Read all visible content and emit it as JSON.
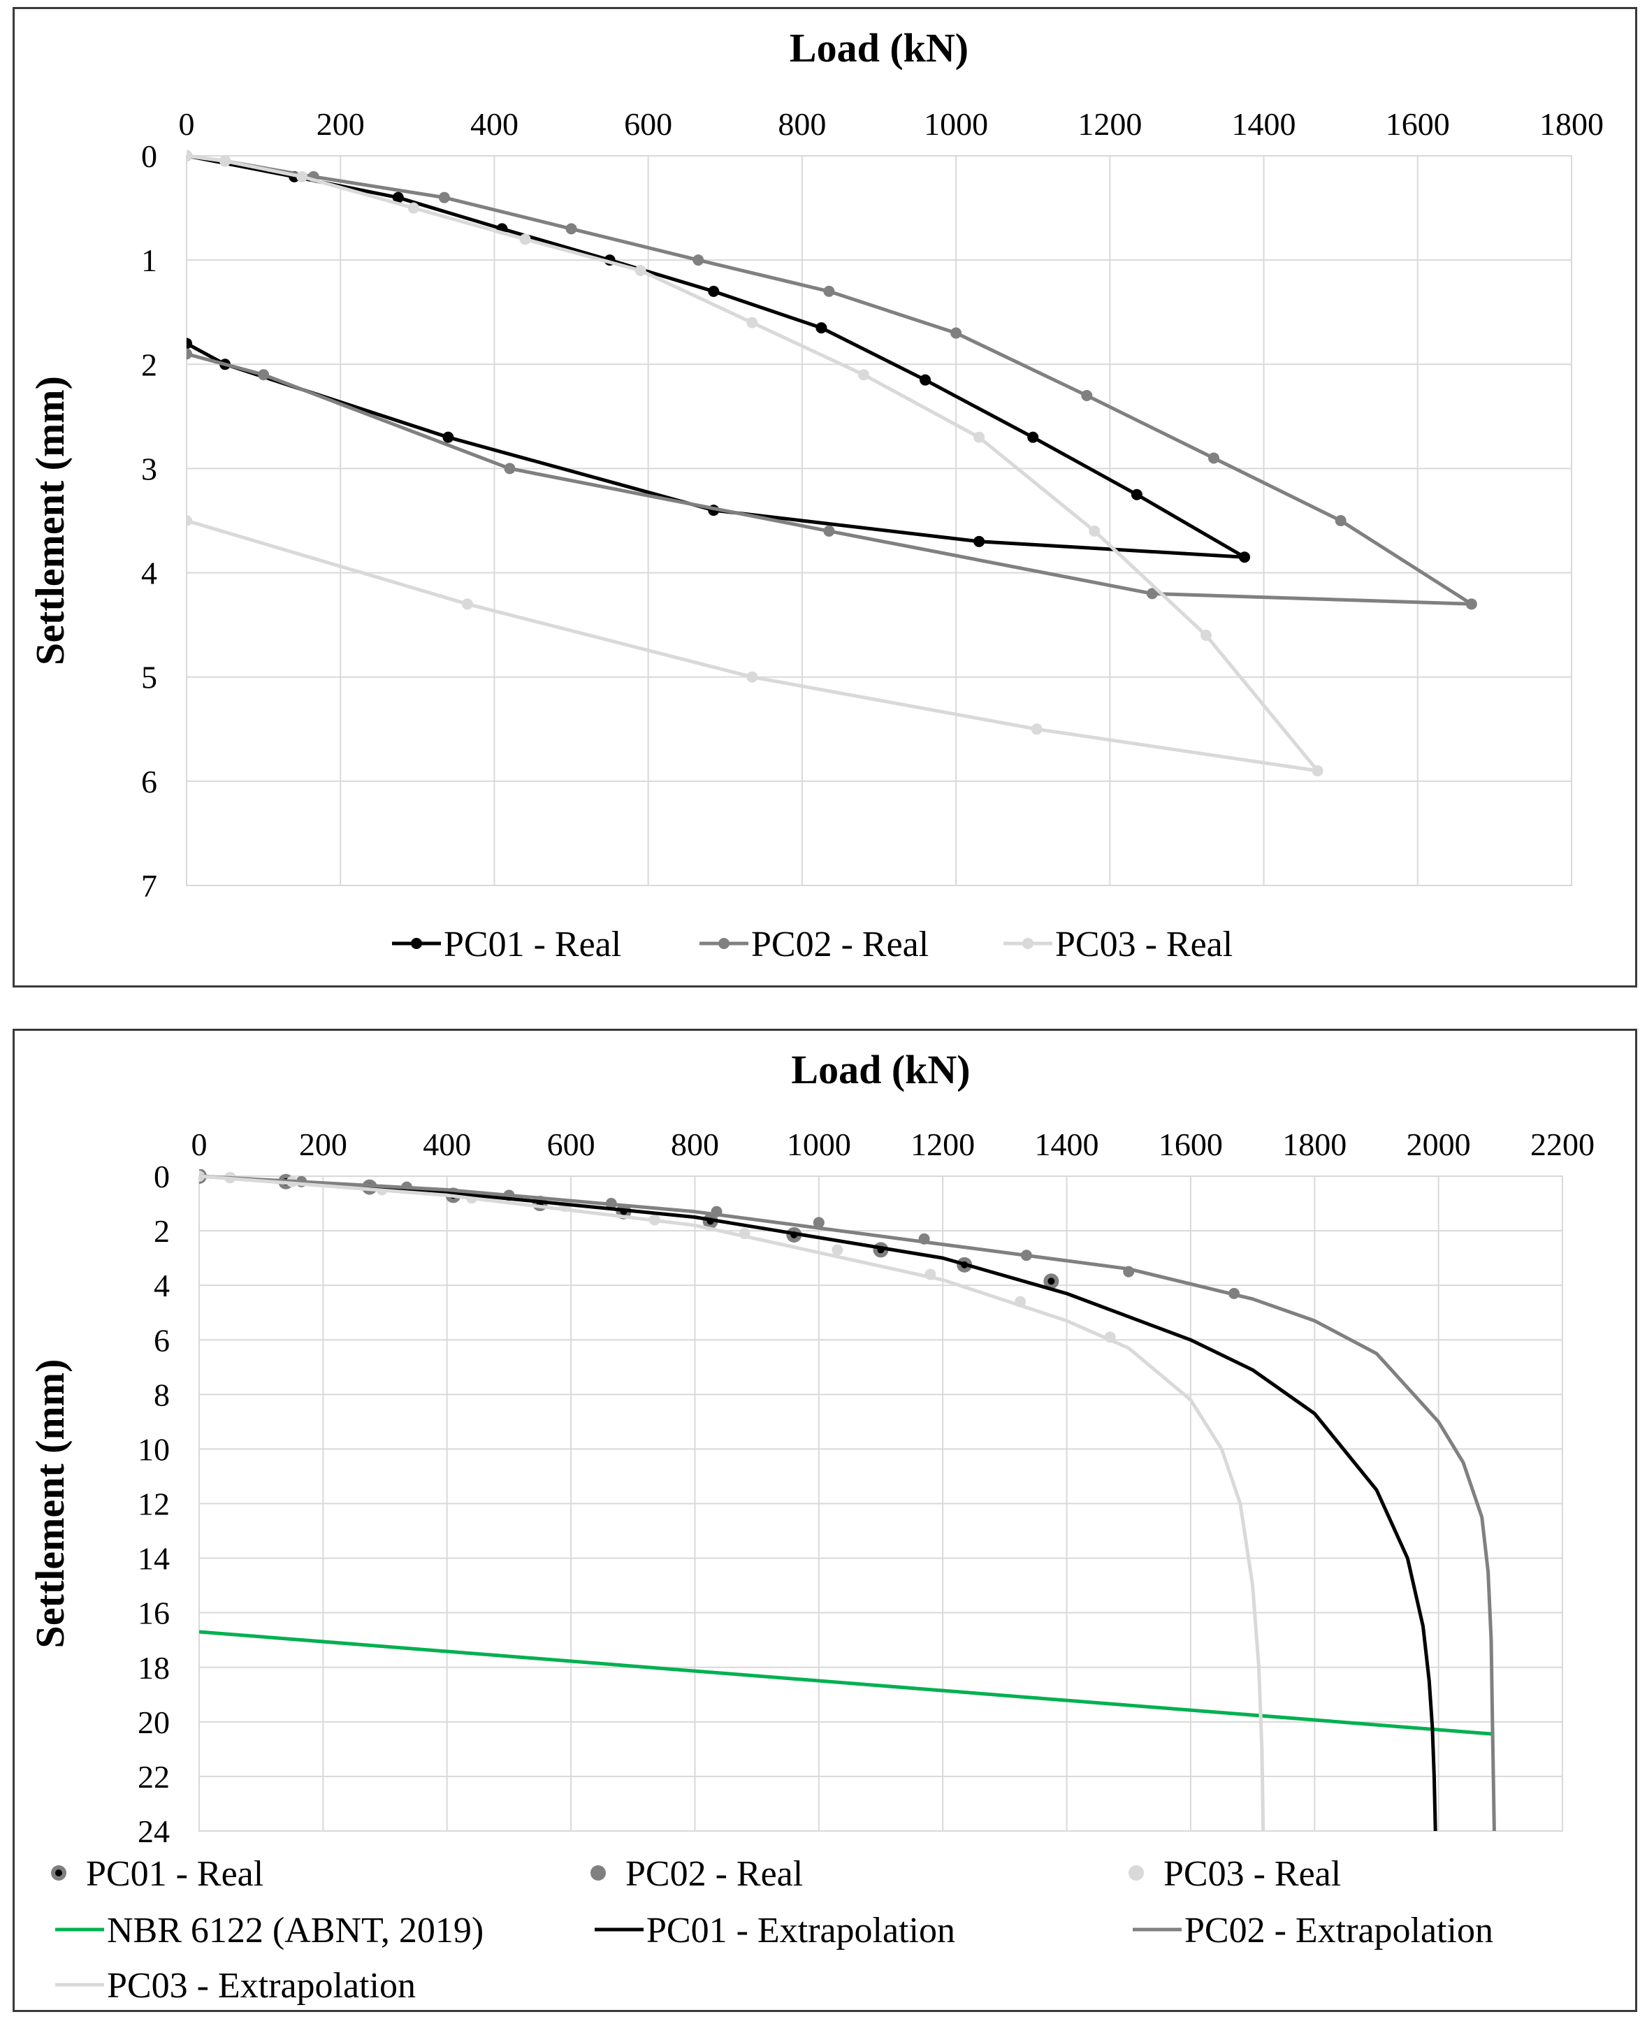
{
  "chart_data": [
    {
      "type": "line",
      "xlabel": "Load (kN)",
      "ylabel": "Settlement (mm)",
      "xlim": [
        0,
        1800
      ],
      "ylim": [
        0,
        7
      ],
      "y_inverted": true,
      "x_ticks": [
        "0",
        "200",
        "400",
        "600",
        "800",
        "1000",
        "1200",
        "1400",
        "1600",
        "1800"
      ],
      "y_ticks": [
        "0",
        "1",
        "2",
        "3",
        "4",
        "5",
        "6",
        "7"
      ],
      "x_tick_values": [
        0,
        200,
        400,
        600,
        800,
        1000,
        1200,
        1400,
        1600,
        1800
      ],
      "y_tick_values": [
        0,
        1,
        2,
        3,
        4,
        5,
        6,
        7
      ],
      "grid": true,
      "legend_position": "bottom",
      "series": [
        {
          "name": "PC01 - Real",
          "color": "#000000",
          "markers": true,
          "line": true,
          "x": [
            0,
            140,
            275,
            410,
            550,
            685,
            825,
            960,
            1100,
            1235,
            1375,
            1030,
            685,
            340,
            50,
            0
          ],
          "y": [
            0,
            0.2,
            0.4,
            0.7,
            1.0,
            1.3,
            1.65,
            2.15,
            2.7,
            3.25,
            3.85,
            3.7,
            3.4,
            2.7,
            2.0,
            1.8
          ]
        },
        {
          "name": "PC02 - Real",
          "color": "#808080",
          "markers": true,
          "line": true,
          "x": [
            0,
            50,
            165,
            335,
            500,
            665,
            835,
            1000,
            1170,
            1335,
            1500,
            1670,
            1255,
            835,
            420,
            100,
            0
          ],
          "y": [
            0,
            0.05,
            0.2,
            0.4,
            0.7,
            1.0,
            1.3,
            1.7,
            2.3,
            2.9,
            3.5,
            4.3,
            4.2,
            3.6,
            3.0,
            2.1,
            1.9
          ]
        },
        {
          "name": "PC03 - Real",
          "color": "#d9d9d9",
          "markers": true,
          "line": true,
          "x": [
            0,
            50,
            150,
            295,
            440,
            590,
            735,
            880,
            1030,
            1180,
            1325,
            1470,
            1105,
            735,
            365,
            0
          ],
          "y": [
            0,
            0.05,
            0.2,
            0.5,
            0.8,
            1.1,
            1.6,
            2.1,
            2.7,
            3.6,
            4.6,
            5.9,
            5.5,
            5.0,
            4.3,
            3.5
          ]
        }
      ]
    },
    {
      "type": "line",
      "xlabel": "Load (kN)",
      "ylabel": "Settlement (mm)",
      "xlim": [
        0,
        2200
      ],
      "ylim": [
        0,
        24
      ],
      "y_inverted": true,
      "x_ticks": [
        "0",
        "200",
        "400",
        "600",
        "800",
        "1000",
        "1200",
        "1400",
        "1600",
        "1800",
        "2000",
        "2200"
      ],
      "y_ticks": [
        "0",
        "2",
        "4",
        "6",
        "8",
        "10",
        "12",
        "14",
        "16",
        "18",
        "20",
        "22",
        "24"
      ],
      "x_tick_values": [
        0,
        200,
        400,
        600,
        800,
        1000,
        1200,
        1400,
        1600,
        1800,
        2000,
        2200
      ],
      "y_tick_values": [
        0,
        2,
        4,
        6,
        8,
        10,
        12,
        14,
        16,
        18,
        20,
        22,
        24
      ],
      "grid": true,
      "legend_position": "bottom",
      "series": [
        {
          "name": "PC01 - Real",
          "color": "#595959",
          "markers": true,
          "line": false,
          "marker_style": "ringed",
          "x": [
            0,
            140,
            275,
            410,
            550,
            685,
            825,
            960,
            1100,
            1235,
            1375
          ],
          "y": [
            0,
            0.2,
            0.4,
            0.7,
            1.0,
            1.3,
            1.65,
            2.15,
            2.7,
            3.25,
            3.85
          ]
        },
        {
          "name": "PC02 - Real",
          "color": "#808080",
          "markers": true,
          "line": false,
          "x": [
            0,
            50,
            165,
            335,
            500,
            665,
            835,
            1000,
            1170,
            1335,
            1500,
            1670
          ],
          "y": [
            0,
            0.05,
            0.2,
            0.4,
            0.7,
            1.0,
            1.3,
            1.7,
            2.3,
            2.9,
            3.5,
            4.3
          ]
        },
        {
          "name": "PC03 - Real",
          "color": "#d9d9d9",
          "markers": true,
          "line": false,
          "x": [
            0,
            50,
            150,
            295,
            440,
            590,
            735,
            880,
            1030,
            1180,
            1325,
            1470
          ],
          "y": [
            0,
            0.05,
            0.2,
            0.5,
            0.8,
            1.1,
            1.6,
            2.1,
            2.7,
            3.6,
            4.6,
            5.9
          ]
        },
        {
          "name": "NBR 6122 (ABNT, 2019)",
          "color": "#00b050",
          "markers": false,
          "line": true,
          "x": [
            0,
            2090
          ],
          "y": [
            16.7,
            20.45
          ]
        },
        {
          "name": "PC01 - Extrapolation",
          "color": "#000000",
          "markers": false,
          "line": true,
          "x": [
            0,
            400,
            800,
            1200,
            1400,
            1600,
            1700,
            1800,
            1900,
            1950,
            1975,
            1985,
            1990,
            1993,
            1995
          ],
          "y": [
            0,
            0.6,
            1.5,
            3.0,
            4.3,
            6.0,
            7.1,
            8.7,
            11.5,
            14.0,
            16.5,
            18.5,
            20.2,
            22.0,
            24.0
          ]
        },
        {
          "name": "PC02 - Extrapolation",
          "color": "#808080",
          "markers": false,
          "line": true,
          "x": [
            0,
            400,
            800,
            1200,
            1500,
            1700,
            1800,
            1900,
            2000,
            2040,
            2070,
            2080,
            2085,
            2087,
            2090
          ],
          "y": [
            0,
            0.5,
            1.3,
            2.5,
            3.4,
            4.5,
            5.3,
            6.5,
            9.0,
            10.5,
            12.5,
            14.5,
            17.0,
            20.0,
            24.0
          ]
        },
        {
          "name": "PC03 - Extrapolation",
          "color": "#d9d9d9",
          "markers": false,
          "line": true,
          "x": [
            0,
            400,
            800,
            1200,
            1400,
            1500,
            1600,
            1650,
            1680,
            1700,
            1710,
            1715,
            1717
          ],
          "y": [
            0,
            0.7,
            1.8,
            3.8,
            5.3,
            6.3,
            8.2,
            10.0,
            12.0,
            15.0,
            18.0,
            21.0,
            24.0
          ]
        }
      ]
    }
  ]
}
